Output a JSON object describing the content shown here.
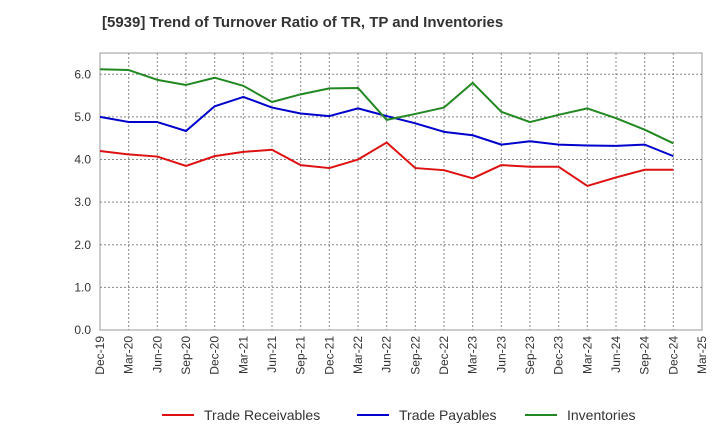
{
  "title": "[5939]  Trend of Turnover Ratio of TR, TP and Inventories",
  "chart_data": {
    "type": "line",
    "title": "[5939]  Trend of Turnover Ratio of TR, TP and Inventories",
    "xlabel": "",
    "ylabel": "",
    "x": [
      "Dec-19",
      "Mar-20",
      "Jun-20",
      "Sep-20",
      "Dec-20",
      "Mar-21",
      "Jun-21",
      "Sep-21",
      "Dec-21",
      "Mar-22",
      "Jun-22",
      "Sep-22",
      "Dec-22",
      "Mar-23",
      "Jun-23",
      "Sep-23",
      "Dec-23",
      "Mar-24",
      "Jun-24",
      "Sep-24",
      "Dec-24"
    ],
    "x_tick_labels": [
      "Dec-19",
      "Mar-20",
      "Jun-20",
      "Sep-20",
      "Dec-20",
      "Mar-21",
      "Jun-21",
      "Sep-21",
      "Dec-21",
      "Mar-22",
      "Jun-22",
      "Sep-22",
      "Dec-22",
      "Mar-23",
      "Jun-23",
      "Sep-23",
      "Dec-23",
      "Mar-24",
      "Jun-24",
      "Sep-24",
      "Dec-24",
      "Mar-25"
    ],
    "y_ticks": [
      "0.0",
      "1.0",
      "2.0",
      "3.0",
      "4.0",
      "5.0",
      "6.0"
    ],
    "ylim": [
      0,
      6.5
    ],
    "grid": true,
    "legend_position": "bottom",
    "series": [
      {
        "name": "Trade Receivables",
        "color": "#dd1111",
        "values": [
          4.2,
          4.12,
          4.07,
          3.85,
          4.08,
          4.18,
          4.23,
          3.87,
          3.8,
          4.0,
          4.4,
          3.8,
          3.75,
          3.56,
          3.87,
          3.83,
          3.83,
          3.38,
          3.58,
          3.76,
          3.76
        ]
      },
      {
        "name": "Trade Payables",
        "color": "#0000cc",
        "values": [
          5.0,
          4.88,
          4.88,
          4.67,
          5.25,
          5.47,
          5.22,
          5.08,
          5.02,
          5.2,
          5.02,
          4.85,
          4.65,
          4.57,
          4.35,
          4.43,
          4.35,
          4.33,
          4.32,
          4.35,
          4.08
        ]
      },
      {
        "name": "Inventories",
        "color": "#228822",
        "values": [
          6.12,
          6.1,
          5.87,
          5.75,
          5.92,
          5.73,
          5.35,
          5.53,
          5.67,
          5.68,
          4.93,
          5.07,
          5.22,
          5.8,
          5.12,
          4.88,
          5.05,
          5.2,
          4.97,
          4.7,
          4.38
        ]
      }
    ]
  }
}
